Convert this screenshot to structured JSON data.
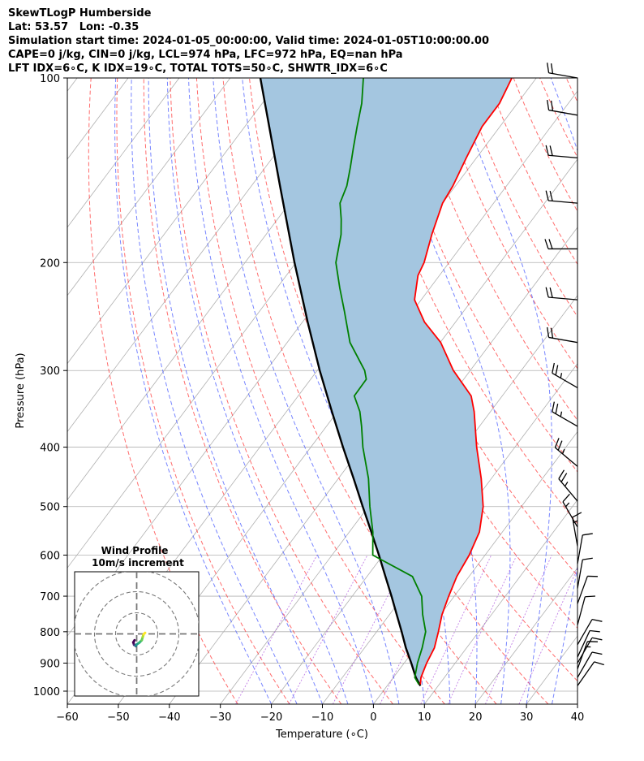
{
  "header": {
    "line1": "SkewTLogP Humberside",
    "line2": "Lat: 53.57   Lon: -0.35",
    "line3": "Simulation start time: 2024-01-05_00:00:00, Valid time: 2024-01-05T10:00:00.00",
    "line4": "CAPE=0 j/kg, CIN=0 j/kg, LCL=974 hPa, LFC=972 hPa, EQ=nan hPa",
    "line5": "LFT IDX=6∘C, K IDX=19∘C, TOTAL TOTS=50∘C, SHWTR_IDX=6∘C"
  },
  "chart_data": {
    "type": "skew-t log-p",
    "xlabel": "Temperature (∘C)",
    "ylabel": "Pressure (hPa)",
    "xlim": [
      -60,
      40
    ],
    "ylim": [
      1050,
      100
    ],
    "x_ticks": [
      -60,
      -50,
      -40,
      -30,
      -20,
      -10,
      0,
      10,
      20,
      30,
      40
    ],
    "x_tick_labels": [
      "−60",
      "−50",
      "−40",
      "−30",
      "−20",
      "−10",
      "0",
      "10",
      "20",
      "30",
      "40"
    ],
    "y_ticks": [
      1000,
      900,
      800,
      700,
      600,
      500,
      400,
      300,
      200,
      100
    ],
    "y_tick_labels": [
      "1000",
      "900",
      "800",
      "700",
      "600",
      "500",
      "400",
      "300",
      "200",
      "100"
    ],
    "temperature": {
      "name": "Temperature",
      "color": "#ff0000",
      "pressure": [
        975,
        950,
        900,
        850,
        800,
        750,
        700,
        650,
        600,
        550,
        500,
        450,
        400,
        350,
        330,
        300,
        270,
        250,
        230,
        210,
        200,
        180,
        160,
        150,
        135,
        120,
        110,
        100
      ],
      "values": [
        6.3,
        5.4,
        4.4,
        3.7,
        2.1,
        0.3,
        -1.1,
        -2.4,
        -3.1,
        -4.5,
        -7.5,
        -12,
        -17.5,
        -23.2,
        -26.1,
        -33.3,
        -39.9,
        -46.1,
        -51.3,
        -54.2,
        -54.9,
        -57.5,
        -60,
        -60.5,
        -62,
        -63.5,
        -63.5,
        -64.8
      ]
    },
    "dewpoint": {
      "name": "Dewpoint",
      "color": "#008000",
      "pressure": [
        975,
        950,
        900,
        850,
        800,
        750,
        700,
        650,
        600,
        550,
        500,
        450,
        400,
        370,
        350,
        330,
        310,
        300,
        270,
        240,
        220,
        200,
        180,
        170,
        160,
        150,
        140,
        130,
        120,
        110,
        100
      ],
      "values": [
        6,
        4.2,
        2.6,
        1.3,
        -0.4,
        -3.5,
        -6.4,
        -11.1,
        -22,
        -25.4,
        -29.7,
        -34.1,
        -39.8,
        -43.1,
        -45.6,
        -49,
        -49.1,
        -50.7,
        -57.7,
        -63.4,
        -67.7,
        -72.2,
        -75.3,
        -77.5,
        -80.1,
        -81.3,
        -83.3,
        -85.6,
        -88,
        -90.5,
        -93.9
      ]
    },
    "parcel": {
      "name": "Parcel",
      "color": "#000000",
      "pressure": [
        980,
        950,
        900,
        850,
        800,
        750,
        700,
        650,
        600,
        550,
        500,
        450,
        400,
        350,
        300,
        250,
        200,
        150,
        100
      ],
      "values": [
        6.5,
        4.4,
        1.4,
        -1.9,
        -5.1,
        -8.6,
        -12.3,
        -16.4,
        -20.8,
        -25.7,
        -31.1,
        -37,
        -43.7,
        -51.1,
        -59.5,
        -69,
        -80.3,
        -94.4,
        -114.1
      ]
    },
    "cape_shading_color": "#a4c6e0",
    "wind_barbs": {
      "pressure": [
        100,
        115,
        135,
        160,
        190,
        230,
        270,
        320,
        370,
        430,
        490,
        540,
        580,
        620,
        680,
        720,
        780,
        840,
        880,
        900,
        920,
        950,
        980
      ],
      "direction_deg": [
        280,
        280,
        275,
        275,
        270,
        275,
        280,
        300,
        300,
        310,
        320,
        330,
        350,
        10,
        10,
        20,
        15,
        30,
        25,
        30,
        20,
        30,
        35
      ],
      "speed_kt": [
        20,
        20,
        20,
        20,
        20,
        20,
        20,
        25,
        25,
        25,
        25,
        15,
        15,
        10,
        10,
        10,
        10,
        10,
        10,
        10,
        15,
        10,
        10
      ]
    },
    "wind_profile_inset": {
      "title_line1": "Wind Profile",
      "title_line2": "10m/s increment",
      "ring_speeds_ms": [
        10,
        20,
        30
      ],
      "u": [
        -1.0,
        -1.6,
        -1.2,
        -0.6,
        -0.4,
        -0.5,
        0.0,
        1.2,
        2.4,
        2.9,
        3.3,
        4.0
      ],
      "v": [
        -3.0,
        -4.0,
        -5.2,
        -5.5,
        -5.8,
        -5.6,
        -5.0,
        -4.2,
        -3.0,
        -1.4,
        -0.2,
        0.5
      ],
      "colormap": "viridis"
    }
  }
}
